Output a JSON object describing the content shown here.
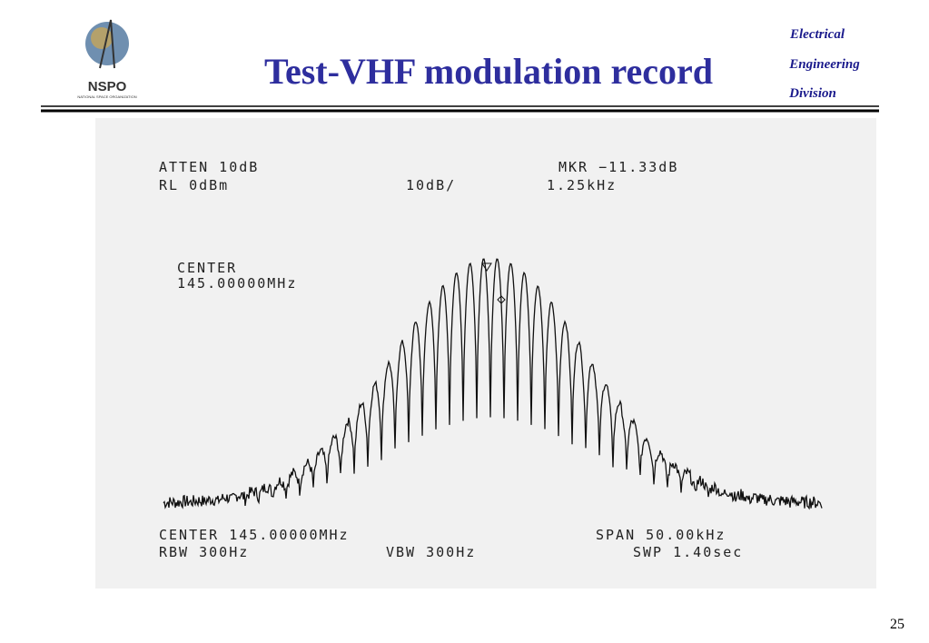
{
  "header": {
    "logo_text": "NSPO",
    "logo_subtext": "NATIONAL SPACE ORGANIZATION",
    "title": "Test-VHF modulation record",
    "division": [
      "Electrical",
      "Engineering",
      "Division"
    ]
  },
  "printout": {
    "atten": "ATTEN 10dB",
    "marker": "MKR −11.33dB",
    "ref_level": "RL 0dBm",
    "scale": "10dB/",
    "marker_freq": "1.25kHz",
    "center_label": "CENTER",
    "center_value": "145.00000MHz",
    "center": "CENTER 145.00000MHz",
    "span": "SPAN 50.00kHz",
    "rbw": "RBW 300Hz",
    "vbw": "VBW 300Hz",
    "sweep": "SWP 1.40sec"
  },
  "page_number": "25"
}
